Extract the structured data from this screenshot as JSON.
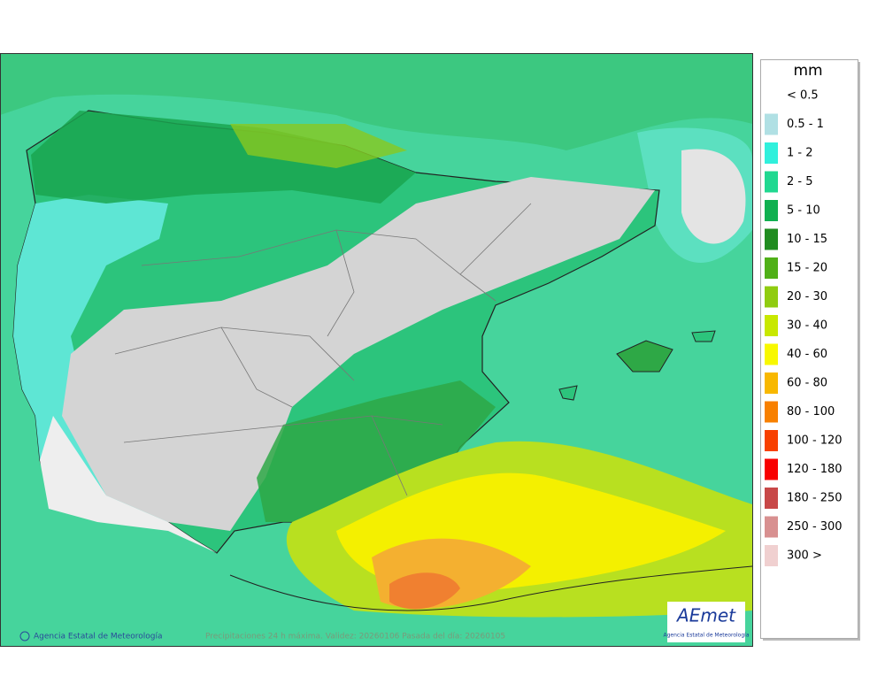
{
  "map": {
    "footer_left": "Agencia Estatal de Meteorología",
    "footer_center": "Precipitaciones 24 h máxima. Validez: 20260106 Pasada del día: 20260105",
    "logo": {
      "name": "AEmet",
      "caption": "Agencia Estatal de Meteorología"
    }
  },
  "legend": {
    "title": "mm",
    "items": [
      {
        "label": "< 0.5",
        "color": "#ffffff"
      },
      {
        "label": "0.5 - 1",
        "color": "#b0e0e4"
      },
      {
        "label": "1 - 2",
        "color": "#30f0dc"
      },
      {
        "label": "2 - 5",
        "color": "#20d890"
      },
      {
        "label": "5 - 10",
        "color": "#10b050"
      },
      {
        "label": "10 - 15",
        "color": "#208c20"
      },
      {
        "label": "15 - 20",
        "color": "#50b018"
      },
      {
        "label": "20 - 30",
        "color": "#90cc10"
      },
      {
        "label": "30 - 40",
        "color": "#c8e800"
      },
      {
        "label": "40 - 60",
        "color": "#f8f800"
      },
      {
        "label": "60 - 80",
        "color": "#f8b800"
      },
      {
        "label": "80 - 100",
        "color": "#f88000"
      },
      {
        "label": "100 - 120",
        "color": "#f84000"
      },
      {
        "label": "120 - 180",
        "color": "#f80000"
      },
      {
        "label": "180 - 250",
        "color": "#c84848"
      },
      {
        "label": "250 - 300",
        "color": "#d89090"
      },
      {
        "label": "300 >",
        "color": "#f0d0d0"
      }
    ]
  }
}
